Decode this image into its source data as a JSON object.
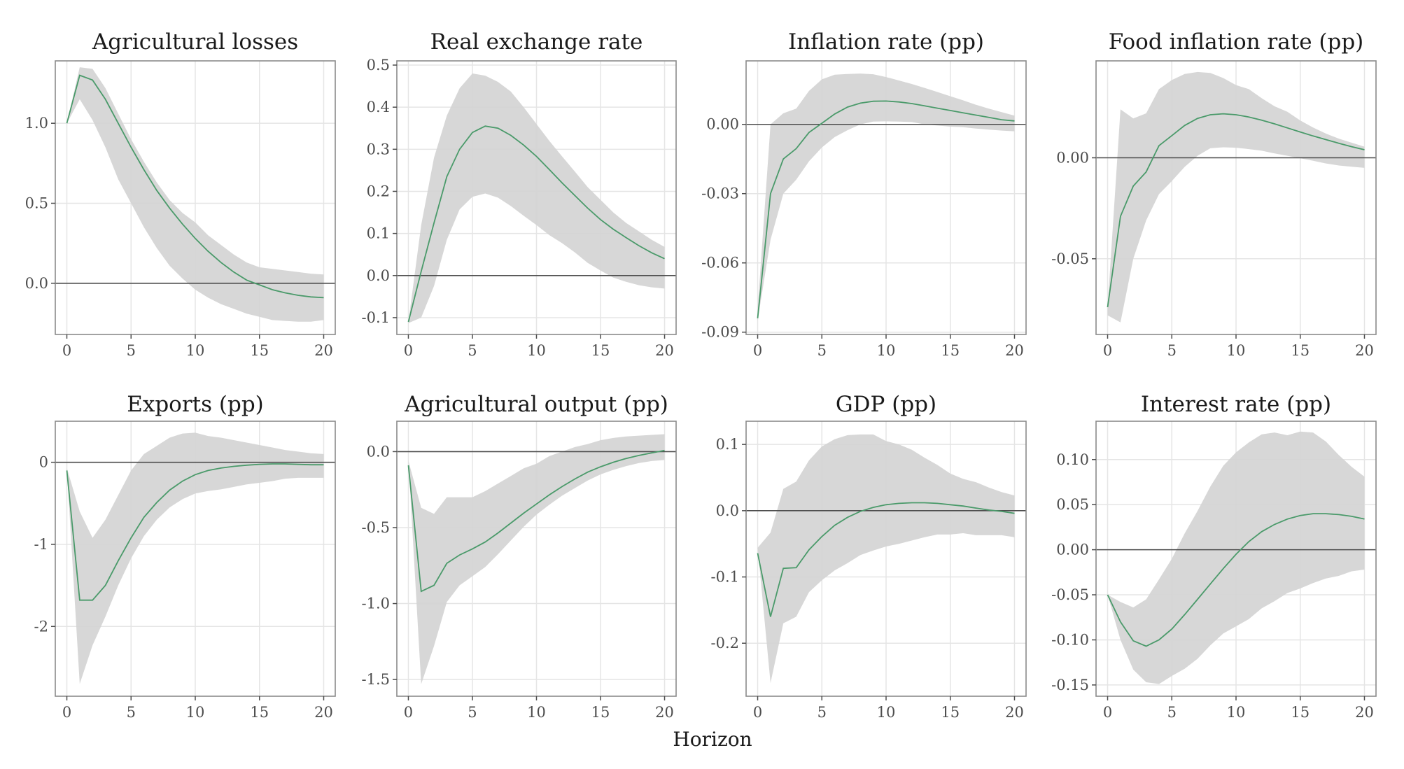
{
  "figure": {
    "xlabel": "Horizon",
    "band_color": "#d3d3d3",
    "line_color": "#4a9a6a",
    "zero_line_color": "#4d4d4d"
  },
  "chart_data": [
    {
      "type": "line",
      "title": "Agricultural losses",
      "x": [
        0,
        1,
        2,
        3,
        4,
        5,
        6,
        7,
        8,
        9,
        10,
        11,
        12,
        13,
        14,
        15,
        16,
        17,
        18,
        19,
        20
      ],
      "xticks": [
        0,
        5,
        10,
        15,
        20
      ],
      "xlim": [
        -0.9,
        20.9
      ],
      "ylim": [
        -0.32,
        1.39
      ],
      "yticks": [
        0.0,
        0.5,
        1.0
      ],
      "ytick_labels": [
        "0.0",
        "0.5",
        "1.0"
      ],
      "series": [
        {
          "name": "median",
          "values": [
            1.0,
            1.3,
            1.27,
            1.15,
            1.0,
            0.85,
            0.71,
            0.58,
            0.47,
            0.37,
            0.28,
            0.2,
            0.13,
            0.07,
            0.02,
            -0.01,
            -0.04,
            -0.06,
            -0.075,
            -0.085,
            -0.09
          ]
        },
        {
          "name": "lower",
          "values": [
            1.0,
            1.15,
            1.02,
            0.85,
            0.65,
            0.5,
            0.35,
            0.22,
            0.11,
            0.03,
            -0.04,
            -0.09,
            -0.13,
            -0.16,
            -0.19,
            -0.21,
            -0.23,
            -0.235,
            -0.24,
            -0.24,
            -0.23
          ]
        },
        {
          "name": "upper",
          "values": [
            1.0,
            1.35,
            1.34,
            1.22,
            1.06,
            0.9,
            0.76,
            0.63,
            0.52,
            0.44,
            0.38,
            0.3,
            0.24,
            0.18,
            0.13,
            0.1,
            0.09,
            0.08,
            0.07,
            0.06,
            0.055
          ]
        }
      ]
    },
    {
      "type": "line",
      "title": "Real exchange rate",
      "x": [
        0,
        1,
        2,
        3,
        4,
        5,
        6,
        7,
        8,
        9,
        10,
        11,
        12,
        13,
        14,
        15,
        16,
        17,
        18,
        19,
        20
      ],
      "xticks": [
        0,
        5,
        10,
        15,
        20
      ],
      "xlim": [
        -0.9,
        20.9
      ],
      "ylim": [
        -0.14,
        0.51
      ],
      "yticks": [
        -0.1,
        0.0,
        0.1,
        0.2,
        0.3,
        0.4,
        0.5
      ],
      "ytick_labels": [
        "-0.1",
        "0.0",
        "0.1",
        "0.2",
        "0.3",
        "0.4",
        "0.5"
      ],
      "series": [
        {
          "name": "median",
          "values": [
            -0.11,
            0.01,
            0.125,
            0.235,
            0.3,
            0.34,
            0.355,
            0.35,
            0.333,
            0.31,
            0.283,
            0.252,
            0.22,
            0.19,
            0.16,
            0.133,
            0.11,
            0.09,
            0.071,
            0.054,
            0.04
          ]
        },
        {
          "name": "lower",
          "values": [
            -0.113,
            -0.1,
            -0.025,
            0.085,
            0.157,
            0.187,
            0.195,
            0.185,
            0.165,
            0.142,
            0.12,
            0.096,
            0.077,
            0.055,
            0.03,
            0.012,
            -0.005,
            -0.015,
            -0.023,
            -0.028,
            -0.031
          ]
        },
        {
          "name": "upper",
          "values": [
            -0.11,
            0.12,
            0.28,
            0.38,
            0.445,
            0.48,
            0.475,
            0.46,
            0.437,
            0.4,
            0.36,
            0.32,
            0.283,
            0.247,
            0.21,
            0.18,
            0.15,
            0.125,
            0.105,
            0.085,
            0.068
          ]
        }
      ]
    },
    {
      "type": "line",
      "title": "Inflation rate (pp)",
      "x": [
        0,
        1,
        2,
        3,
        4,
        5,
        6,
        7,
        8,
        9,
        10,
        11,
        12,
        13,
        14,
        15,
        16,
        17,
        18,
        19,
        20
      ],
      "xticks": [
        0,
        5,
        10,
        15,
        20
      ],
      "xlim": [
        -0.9,
        20.9
      ],
      "ylim": [
        -0.091,
        0.0275
      ],
      "yticks": [
        -0.09,
        -0.06,
        -0.03,
        0.0
      ],
      "ytick_labels": [
        "-0.09",
        "-0.06",
        "-0.03",
        "0.00"
      ],
      "series": [
        {
          "name": "median",
          "values": [
            -0.084,
            -0.03,
            -0.015,
            -0.0105,
            -0.0035,
            0.0005,
            0.0045,
            0.0075,
            0.0092,
            0.01,
            0.0101,
            0.0097,
            0.009,
            0.008,
            0.007,
            0.006,
            0.005,
            0.004,
            0.003,
            0.002,
            0.0015
          ]
        },
        {
          "name": "lower",
          "values": [
            -0.085,
            -0.05,
            -0.03,
            -0.024,
            -0.016,
            -0.01,
            -0.0055,
            -0.0025,
            0.0,
            0.0012,
            0.0013,
            0.0012,
            0.001,
            0.0,
            -0.0005,
            -0.001,
            -0.0012,
            -0.0018,
            -0.0023,
            -0.0027,
            -0.003
          ]
        },
        {
          "name": "upper",
          "values": [
            -0.08,
            0.0,
            0.0048,
            0.0068,
            0.0145,
            0.0195,
            0.0215,
            0.0218,
            0.022,
            0.0217,
            0.0205,
            0.019,
            0.0175,
            0.0158,
            0.014,
            0.0122,
            0.0104,
            0.0085,
            0.0068,
            0.0053,
            0.0038
          ]
        }
      ]
    },
    {
      "type": "line",
      "title": "Food inflation rate (pp)",
      "x": [
        0,
        1,
        2,
        3,
        4,
        5,
        6,
        7,
        8,
        9,
        10,
        11,
        12,
        13,
        14,
        15,
        16,
        17,
        18,
        19,
        20
      ],
      "xticks": [
        0,
        5,
        10,
        15,
        20
      ],
      "xlim": [
        -0.9,
        20.9
      ],
      "ylim": [
        -0.0875,
        0.048
      ],
      "yticks": [
        -0.05,
        0.0
      ],
      "ytick_labels": [
        "-0.05",
        "0.00"
      ],
      "series": [
        {
          "name": "median",
          "values": [
            -0.074,
            -0.029,
            -0.014,
            -0.007,
            0.006,
            0.011,
            0.016,
            0.0195,
            0.0213,
            0.0218,
            0.0213,
            0.0202,
            0.0186,
            0.0168,
            0.0148,
            0.0128,
            0.0108,
            0.009,
            0.0072,
            0.0055,
            0.004
          ]
        },
        {
          "name": "lower",
          "values": [
            -0.078,
            -0.0815,
            -0.05,
            -0.031,
            -0.018,
            -0.0115,
            -0.0045,
            0.001,
            0.0047,
            0.0052,
            0.005,
            0.0043,
            0.0035,
            0.0022,
            0.001,
            -0.0002,
            -0.0015,
            -0.0028,
            -0.0038,
            -0.0044,
            -0.005
          ]
        },
        {
          "name": "upper",
          "values": [
            -0.074,
            0.024,
            0.0195,
            0.022,
            0.034,
            0.0385,
            0.0415,
            0.0425,
            0.042,
            0.0395,
            0.036,
            0.034,
            0.0295,
            0.0255,
            0.0228,
            0.0185,
            0.015,
            0.012,
            0.0095,
            0.0075,
            0.0055
          ]
        }
      ]
    },
    {
      "type": "line",
      "title": "Exports (pp)",
      "x": [
        0,
        1,
        2,
        3,
        4,
        5,
        6,
        7,
        8,
        9,
        10,
        11,
        12,
        13,
        14,
        15,
        16,
        17,
        18,
        19,
        20
      ],
      "xticks": [
        0,
        5,
        10,
        15,
        20
      ],
      "xlim": [
        -0.9,
        20.9
      ],
      "ylim": [
        -2.85,
        0.5
      ],
      "yticks": [
        -2,
        -1,
        0
      ],
      "ytick_labels": [
        "-2",
        "-1",
        "0"
      ],
      "series": [
        {
          "name": "median",
          "values": [
            -0.1,
            -1.68,
            -1.68,
            -1.5,
            -1.2,
            -0.92,
            -0.67,
            -0.49,
            -0.34,
            -0.23,
            -0.15,
            -0.1,
            -0.07,
            -0.05,
            -0.035,
            -0.025,
            -0.02,
            -0.02,
            -0.025,
            -0.03,
            -0.03
          ]
        },
        {
          "name": "lower",
          "values": [
            -0.07,
            -2.7,
            -2.23,
            -1.88,
            -1.5,
            -1.17,
            -0.9,
            -0.7,
            -0.55,
            -0.45,
            -0.38,
            -0.35,
            -0.33,
            -0.3,
            -0.27,
            -0.25,
            -0.23,
            -0.2,
            -0.19,
            -0.19,
            -0.19
          ]
        },
        {
          "name": "upper",
          "values": [
            -0.07,
            -0.6,
            -0.92,
            -0.7,
            -0.4,
            -0.1,
            0.1,
            0.2,
            0.3,
            0.35,
            0.36,
            0.32,
            0.3,
            0.27,
            0.24,
            0.21,
            0.18,
            0.15,
            0.13,
            0.11,
            0.1
          ]
        }
      ]
    },
    {
      "type": "line",
      "title": "Agricultural output (pp)",
      "x": [
        0,
        1,
        2,
        3,
        4,
        5,
        6,
        7,
        8,
        9,
        10,
        11,
        12,
        13,
        14,
        15,
        16,
        17,
        18,
        19,
        20
      ],
      "xticks": [
        0,
        5,
        10,
        15,
        20
      ],
      "xlim": [
        -0.9,
        20.9
      ],
      "ylim": [
        -1.61,
        0.2
      ],
      "yticks": [
        -1.5,
        -1.0,
        -0.5,
        0.0
      ],
      "ytick_labels": [
        "-1.5",
        "-1.0",
        "-0.5",
        "0.0"
      ],
      "series": [
        {
          "name": "median",
          "values": [
            -0.09,
            -0.92,
            -0.88,
            -0.735,
            -0.68,
            -0.64,
            -0.595,
            -0.535,
            -0.47,
            -0.405,
            -0.345,
            -0.285,
            -0.23,
            -0.18,
            -0.135,
            -0.1,
            -0.07,
            -0.045,
            -0.025,
            -0.008,
            0.008
          ]
        },
        {
          "name": "lower",
          "values": [
            -0.06,
            -1.53,
            -1.28,
            -0.99,
            -0.88,
            -0.82,
            -0.76,
            -0.675,
            -0.585,
            -0.495,
            -0.415,
            -0.35,
            -0.29,
            -0.24,
            -0.19,
            -0.15,
            -0.12,
            -0.095,
            -0.075,
            -0.062,
            -0.055
          ]
        },
        {
          "name": "upper",
          "values": [
            -0.06,
            -0.37,
            -0.41,
            -0.3,
            -0.3,
            -0.3,
            -0.26,
            -0.21,
            -0.16,
            -0.11,
            -0.08,
            -0.03,
            0.0,
            0.03,
            0.05,
            0.075,
            0.09,
            0.1,
            0.105,
            0.11,
            0.115
          ]
        }
      ]
    },
    {
      "type": "line",
      "title": "GDP (pp)",
      "x": [
        0,
        1,
        2,
        3,
        4,
        5,
        6,
        7,
        8,
        9,
        10,
        11,
        12,
        13,
        14,
        15,
        16,
        17,
        18,
        19,
        20
      ],
      "xticks": [
        0,
        5,
        10,
        15,
        20
      ],
      "xlim": [
        -0.9,
        20.9
      ],
      "ylim": [
        -0.28,
        0.135
      ],
      "yticks": [
        -0.2,
        -0.1,
        0.0,
        0.1
      ],
      "ytick_labels": [
        "-0.2",
        "-0.1",
        "0.0",
        "0.1"
      ],
      "series": [
        {
          "name": "median",
          "values": [
            -0.064,
            -0.16,
            -0.087,
            -0.086,
            -0.059,
            -0.039,
            -0.022,
            -0.01,
            -0.001,
            0.005,
            0.009,
            0.011,
            0.012,
            0.012,
            0.011,
            0.009,
            0.007,
            0.004,
            0.001,
            -0.001,
            -0.004
          ]
        },
        {
          "name": "lower",
          "values": [
            -0.056,
            -0.26,
            -0.17,
            -0.16,
            -0.123,
            -0.105,
            -0.09,
            -0.079,
            -0.067,
            -0.06,
            -0.054,
            -0.05,
            -0.045,
            -0.04,
            -0.036,
            -0.036,
            -0.034,
            -0.037,
            -0.037,
            -0.037,
            -0.04
          ]
        },
        {
          "name": "upper",
          "values": [
            -0.056,
            -0.033,
            0.033,
            0.044,
            0.076,
            0.097,
            0.108,
            0.114,
            0.115,
            0.115,
            0.105,
            0.1,
            0.092,
            0.08,
            0.069,
            0.056,
            0.048,
            0.043,
            0.035,
            0.028,
            0.023
          ]
        }
      ]
    },
    {
      "type": "line",
      "title": "Interest rate (pp)",
      "x": [
        0,
        1,
        2,
        3,
        4,
        5,
        6,
        7,
        8,
        9,
        10,
        11,
        12,
        13,
        14,
        15,
        16,
        17,
        18,
        19,
        20
      ],
      "xticks": [
        0,
        5,
        10,
        15,
        20
      ],
      "xlim": [
        -0.9,
        20.9
      ],
      "ylim": [
        -0.1625,
        0.1425
      ],
      "yticks": [
        -0.15,
        -0.1,
        -0.05,
        0.0,
        0.05,
        0.1
      ],
      "ytick_labels": [
        "-0.15",
        "-0.10",
        "-0.05",
        "0.00",
        "0.05",
        "0.10"
      ],
      "series": [
        {
          "name": "median",
          "values": [
            -0.05,
            -0.08,
            -0.101,
            -0.107,
            -0.1,
            -0.088,
            -0.072,
            -0.055,
            -0.038,
            -0.021,
            -0.005,
            0.009,
            0.02,
            0.028,
            0.034,
            0.038,
            0.04,
            0.04,
            0.039,
            0.037,
            0.034
          ]
        },
        {
          "name": "lower",
          "values": [
            -0.05,
            -0.1,
            -0.133,
            -0.147,
            -0.149,
            -0.14,
            -0.132,
            -0.121,
            -0.106,
            -0.093,
            -0.085,
            -0.077,
            -0.065,
            -0.057,
            -0.048,
            -0.043,
            -0.037,
            -0.032,
            -0.029,
            -0.024,
            -0.022
          ]
        },
        {
          "name": "upper",
          "values": [
            -0.05,
            -0.058,
            -0.064,
            -0.055,
            -0.033,
            -0.01,
            0.018,
            0.043,
            0.07,
            0.093,
            0.108,
            0.119,
            0.128,
            0.13,
            0.127,
            0.131,
            0.13,
            0.12,
            0.105,
            0.092,
            0.081
          ]
        }
      ]
    }
  ]
}
